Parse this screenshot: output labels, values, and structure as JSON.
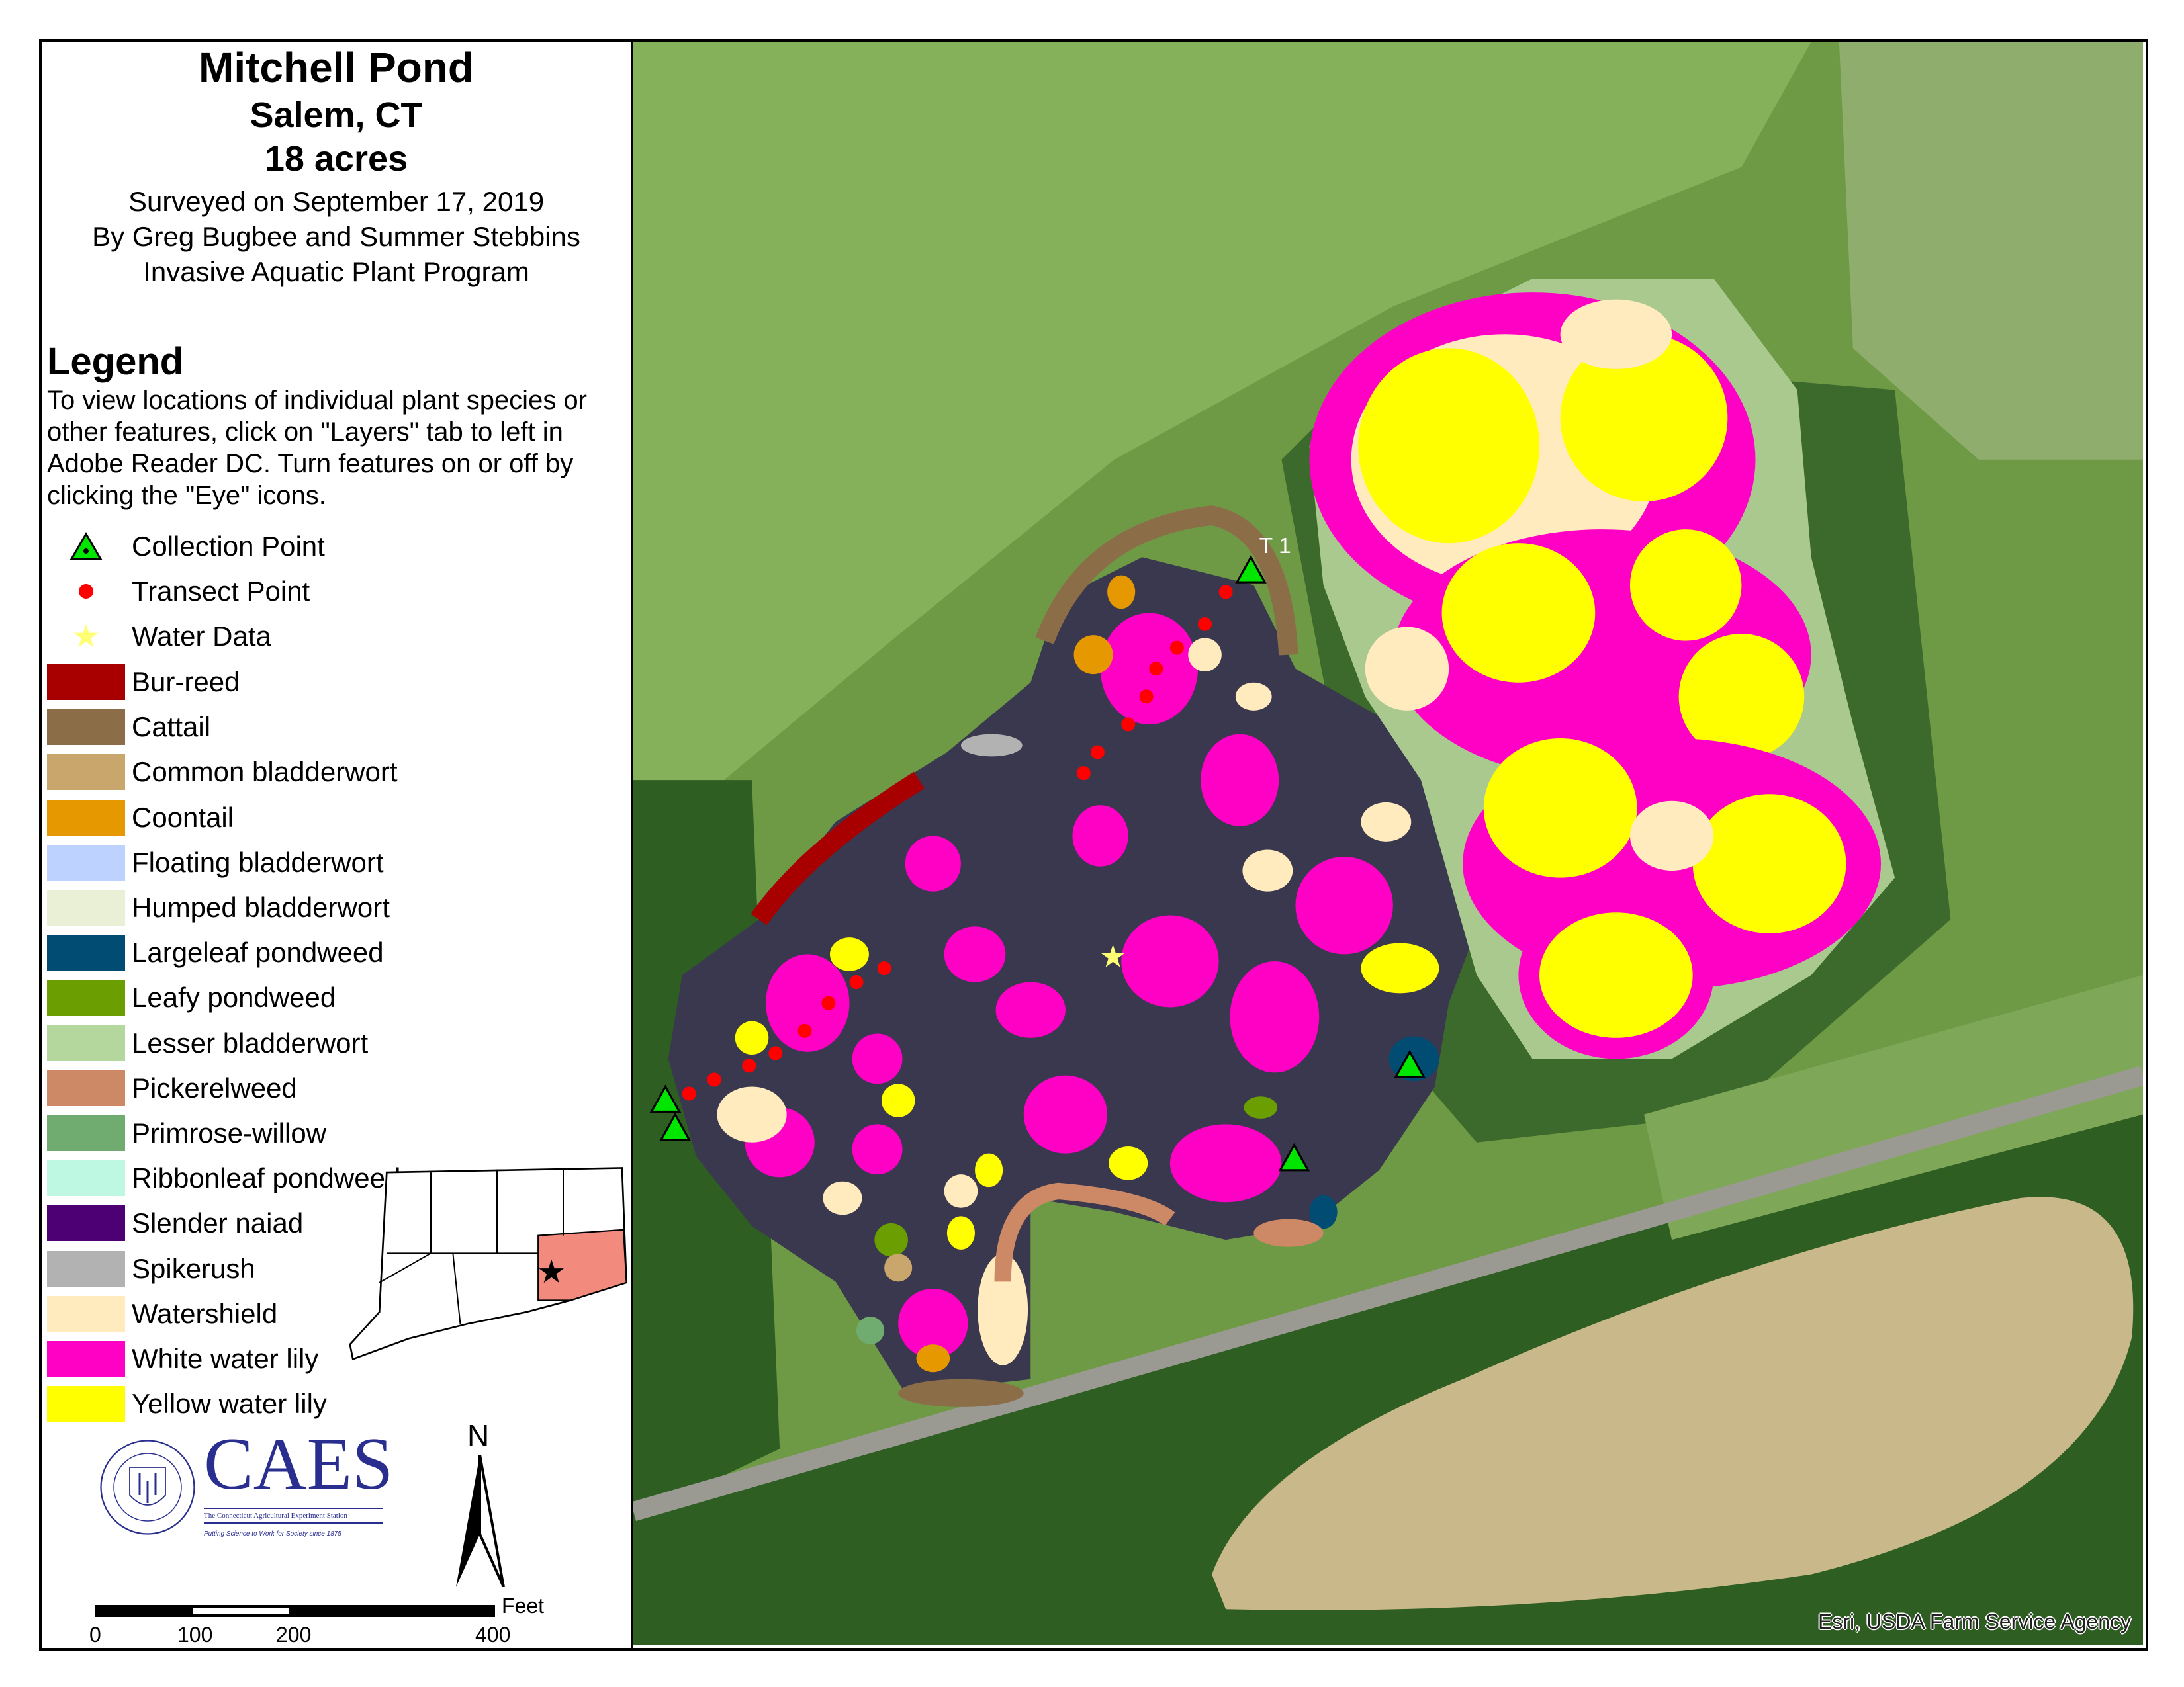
{
  "header": {
    "title": "Mitchell Pond",
    "location": "Salem, CT",
    "area": "18 acres",
    "survey_date": "Surveyed on September 17, 2019",
    "surveyors": "By Greg Bugbee and Summer Stebbins",
    "program": "Invasive Aquatic Plant Program"
  },
  "legend": {
    "heading": "Legend",
    "note": "To view locations of individual plant species or other features, click on \"Layers\" tab to left in Adobe Reader DC. Turn features on or off by clicking the \"Eye\" icons.",
    "items": [
      {
        "label": "Collection Point",
        "symbol": "triangle",
        "color": "#00e600"
      },
      {
        "label": "Transect Point",
        "symbol": "dot",
        "color": "#ff0000"
      },
      {
        "label": "Water Data",
        "symbol": "star",
        "color": "#ffff73"
      },
      {
        "label": "Bur-reed",
        "symbol": "fill",
        "color": "#a80000"
      },
      {
        "label": "Cattail",
        "symbol": "fill",
        "color": "#8b6d47"
      },
      {
        "label": "Common bladderwort",
        "symbol": "fill",
        "color": "#c9a66b"
      },
      {
        "label": "Coontail",
        "symbol": "fill",
        "color": "#e69800"
      },
      {
        "label": "Floating bladderwort",
        "symbol": "fill",
        "color": "#bed2ff"
      },
      {
        "label": "Humped bladderwort",
        "symbol": "fill",
        "color": "#e9f0d6"
      },
      {
        "label": "Largeleaf pondweed",
        "symbol": "fill",
        "color": "#004c73"
      },
      {
        "label": "Leafy pondweed",
        "symbol": "fill",
        "color": "#6b9e00"
      },
      {
        "label": "Lesser bladderwort",
        "symbol": "fill",
        "color": "#b4d79e"
      },
      {
        "label": "Pickerelweed",
        "symbol": "fill",
        "color": "#cd8966"
      },
      {
        "label": "Primrose-willow",
        "symbol": "fill",
        "color": "#70ab70"
      },
      {
        "label": "Ribbonleaf pondweed",
        "symbol": "fill",
        "color": "#bef7e2"
      },
      {
        "label": "Slender naiad",
        "symbol": "fill",
        "color": "#4c0073"
      },
      {
        "label": "Spikerush",
        "symbol": "fill",
        "color": "#b2b2b2"
      },
      {
        "label": "Watershield",
        "symbol": "fill",
        "color": "#ffebbe"
      },
      {
        "label": "White water lily",
        "symbol": "fill",
        "color": "#ff00c5"
      },
      {
        "label": "Yellow water lily",
        "symbol": "fill",
        "color": "#ffff00"
      }
    ]
  },
  "logo": {
    "name": "CAES",
    "full_name": "The Connecticut Agricultural Experiment Station",
    "tagline": "Putting Science to Work for Society since 1875",
    "seal_text": "THE CONNECTICUT AGRICULTURAL EXPERIMENT STATION"
  },
  "north_arrow": {
    "label": "N"
  },
  "scale_bar": {
    "unit": "Feet",
    "ticks": [
      "0",
      "100",
      "200",
      "400"
    ]
  },
  "map": {
    "transect_label": "T 1",
    "attribution": "Esri, USDA Farm Service Agency"
  }
}
